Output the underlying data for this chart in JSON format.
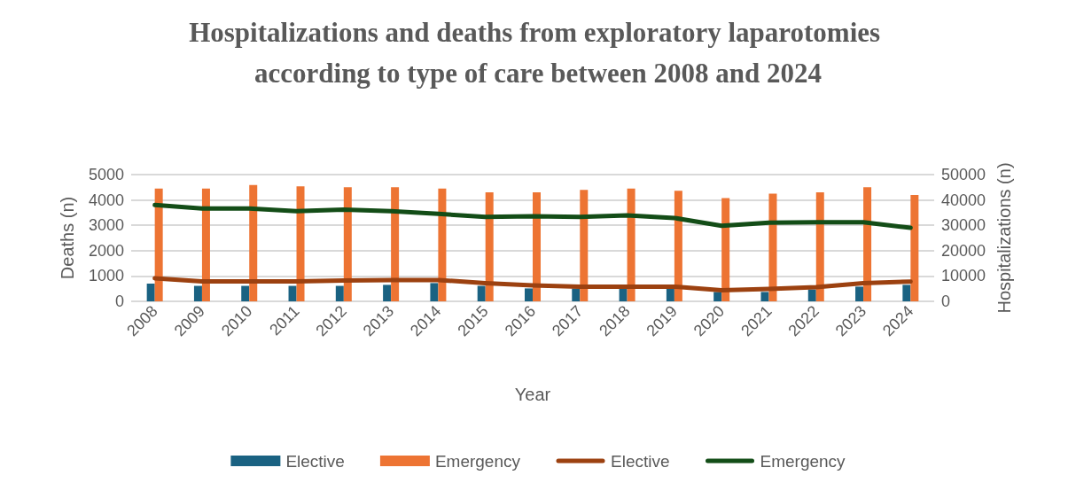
{
  "chart_data": {
    "type": "bar",
    "title": "Hospitalizations and deaths from exploratory laparotomies according to type of care between 2008 and 2024",
    "xlabel": "Year",
    "ylabel": "Deaths (n)",
    "y2label": "Hospitalizations (n)",
    "categories": [
      "2008",
      "2009",
      "2010",
      "2011",
      "2012",
      "2013",
      "2014",
      "2015",
      "2016",
      "2017",
      "2018",
      "2019",
      "2020",
      "2021",
      "2022",
      "2023",
      "2024"
    ],
    "series": [
      {
        "name": "Elective",
        "color": "#1a6282",
        "values": [
          700,
          610,
          610,
          610,
          610,
          650,
          720,
          610,
          510,
          510,
          490,
          490,
          370,
          370,
          470,
          580,
          650
        ]
      },
      {
        "name": "Emergency",
        "color": "#ed7433",
        "values": [
          4450,
          4450,
          4590,
          4540,
          4500,
          4500,
          4450,
          4300,
          4300,
          4400,
          4450,
          4360,
          4070,
          4250,
          4300,
          4500,
          4200
        ]
      },
      {
        "name": "Elective",
        "type": "line",
        "axis": "y2",
        "color": "#9c4110",
        "values": [
          9100,
          7900,
          7900,
          7900,
          8200,
          8400,
          8400,
          7200,
          6300,
          5800,
          5800,
          5800,
          4400,
          4900,
          5600,
          7200,
          7800
        ]
      },
      {
        "name": "Emergency",
        "type": "line",
        "axis": "y2",
        "color": "#134d17",
        "values": [
          38000,
          36600,
          36600,
          35600,
          36200,
          35600,
          34500,
          33300,
          33600,
          33300,
          33900,
          32900,
          29800,
          31000,
          31200,
          31200,
          29000
        ]
      }
    ],
    "ylim": [
      0,
      5000
    ],
    "yticks": [
      0,
      1000,
      2000,
      3000,
      4000,
      5000
    ],
    "y2lim": [
      0,
      50000
    ],
    "y2ticks": [
      0,
      10000,
      20000,
      30000,
      40000,
      50000
    ],
    "grid": "y",
    "legend": "bottom",
    "marker": "none",
    "line_style": "solid"
  }
}
